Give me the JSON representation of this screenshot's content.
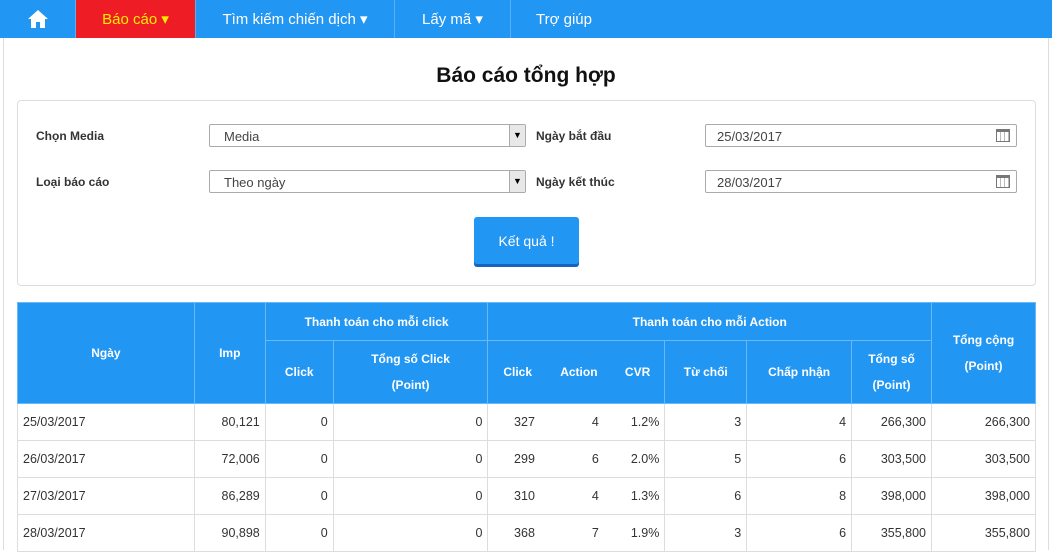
{
  "nav": {
    "items": [
      {
        "label": "Báo cáo ▾"
      },
      {
        "label": "Tìm kiếm chiến dịch ▾"
      },
      {
        "label": "Lấy mã ▾"
      },
      {
        "label": "Trợ giúp"
      }
    ]
  },
  "title": "Báo cáo tổng hợp",
  "form": {
    "media_label": "Chọn Media",
    "media_value": "Media",
    "type_label": "Loại báo cáo",
    "type_value": "Theo ngày",
    "start_label": "Ngày bắt đầu",
    "start_value": "25/03/2017",
    "end_label": "Ngày kết thúc",
    "end_value": "28/03/2017",
    "submit": "Kết quả !"
  },
  "table": {
    "headers": {
      "date": "Ngày",
      "imp": "Imp",
      "click_group": "Thanh toán cho mỗi click",
      "action_group": "Thanh toán cho mỗi Action",
      "total": "Tổng cộng",
      "point": "(Point)",
      "click": "Click",
      "total_click": "Tổng số Click",
      "action": "Action",
      "cvr": "CVR",
      "reject": "Từ chối",
      "accept": "Chấp nhận",
      "total_sum": "Tổng số"
    },
    "rows": [
      [
        "25/03/2017",
        "80,121",
        "0",
        "0",
        "327",
        "4",
        "1.2%",
        "3",
        "4",
        "266,300",
        "266,300"
      ],
      [
        "26/03/2017",
        "72,006",
        "0",
        "0",
        "299",
        "6",
        "2.0%",
        "5",
        "6",
        "303,500",
        "303,500"
      ],
      [
        "27/03/2017",
        "86,289",
        "0",
        "0",
        "310",
        "4",
        "1.3%",
        "6",
        "8",
        "398,000",
        "398,000"
      ],
      [
        "28/03/2017",
        "90,898",
        "0",
        "0",
        "368",
        "7",
        "1.9%",
        "3",
        "6",
        "355,800",
        "355,800"
      ]
    ]
  }
}
